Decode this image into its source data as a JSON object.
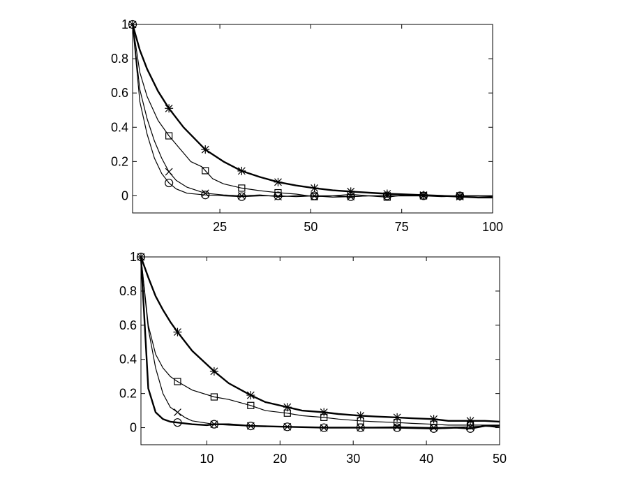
{
  "chart_data": [
    {
      "type": "line",
      "title": "",
      "xlabel": "",
      "ylabel": "",
      "xlim": [
        1,
        100
      ],
      "ylim": [
        -0.1,
        1.0
      ],
      "grid": false,
      "x_ticks": [
        25,
        50,
        75,
        100
      ],
      "y_ticks": [
        0,
        0.2,
        0.4,
        0.6,
        0.8,
        1
      ],
      "x_tick_labels": [
        "25",
        "50",
        "75",
        "100"
      ],
      "y_tick_labels": [
        "0",
        "0.2",
        "0.4",
        "0.6",
        "0.8",
        "1"
      ],
      "series": [
        {
          "marker": "star",
          "marker_x": [
            1,
            11,
            21,
            31,
            41,
            51,
            61,
            71,
            81,
            91
          ],
          "line_width": 2.4,
          "x": [
            1,
            3,
            5,
            8,
            11,
            15,
            21,
            26,
            31,
            36,
            41,
            46,
            51,
            56,
            61,
            66,
            71,
            76,
            81,
            86,
            91,
            96,
            100
          ],
          "y": [
            1.0,
            0.85,
            0.74,
            0.61,
            0.51,
            0.4,
            0.27,
            0.2,
            0.145,
            0.11,
            0.08,
            0.06,
            0.045,
            0.032,
            0.025,
            0.018,
            0.012,
            0.008,
            0.004,
            0.0,
            -0.005,
            -0.01,
            -0.01
          ]
        },
        {
          "marker": "square",
          "marker_x": [
            11,
            21,
            31,
            41,
            51,
            61,
            71,
            81,
            91
          ],
          "line_width": 1.2,
          "x": [
            1,
            3,
            5,
            8,
            11,
            13,
            15,
            17,
            20,
            23,
            26,
            31,
            36,
            41,
            46,
            51,
            56,
            61,
            66,
            71,
            76,
            81,
            86,
            91,
            96,
            100
          ],
          "y": [
            1.0,
            0.72,
            0.58,
            0.44,
            0.35,
            0.3,
            0.25,
            0.2,
            0.17,
            0.1,
            0.07,
            0.045,
            0.03,
            0.018,
            0.01,
            -0.005,
            0.0,
            0.008,
            0.0,
            -0.008,
            0.005,
            0.0,
            -0.005,
            0.0,
            0.0,
            -0.005
          ]
        },
        {
          "marker": "x",
          "marker_x": [
            11,
            21,
            31,
            41,
            51,
            61,
            71,
            81,
            91
          ],
          "line_width": 1.2,
          "x": [
            1,
            3,
            5,
            7,
            9,
            11,
            13,
            16,
            21,
            26,
            31,
            36,
            41,
            46,
            51,
            56,
            61,
            66,
            71,
            76,
            81,
            86,
            91,
            96,
            100
          ],
          "y": [
            1.0,
            0.62,
            0.45,
            0.32,
            0.22,
            0.14,
            0.09,
            0.05,
            0.015,
            0.005,
            0.0,
            0.005,
            -0.005,
            0.0,
            0.0,
            0.0,
            -0.005,
            0.0,
            0.0,
            0.0,
            0.0,
            0.0,
            0.0,
            0.0,
            0.0
          ]
        },
        {
          "marker": "circle",
          "marker_x": [
            1,
            11,
            21,
            31,
            41,
            51,
            61,
            71,
            81,
            91
          ],
          "line_width": 1.2,
          "x": [
            1,
            3,
            5,
            7,
            9,
            11,
            13,
            16,
            21,
            26,
            31,
            36,
            41,
            46,
            51,
            56,
            61,
            66,
            71,
            76,
            81,
            86,
            91,
            96,
            100
          ],
          "y": [
            1.0,
            0.55,
            0.36,
            0.22,
            0.13,
            0.075,
            0.04,
            0.015,
            0.005,
            0.0,
            -0.005,
            0.0,
            0.0,
            -0.005,
            0.0,
            -0.008,
            -0.005,
            0.0,
            0.0,
            0.0,
            0.0,
            0.0,
            0.0,
            0.0,
            0.0
          ]
        }
      ]
    },
    {
      "type": "line",
      "title": "",
      "xlabel": "",
      "ylabel": "",
      "xlim": [
        1,
        50
      ],
      "ylim": [
        -0.1,
        1.0
      ],
      "grid": false,
      "x_ticks": [
        10,
        20,
        30,
        40,
        50
      ],
      "y_ticks": [
        0,
        0.2,
        0.4,
        0.6,
        0.8,
        1
      ],
      "x_tick_labels": [
        "10",
        "20",
        "30",
        "40",
        "50"
      ],
      "y_tick_labels": [
        "0",
        "0.2",
        "0.4",
        "0.6",
        "0.8",
        "1"
      ],
      "series": [
        {
          "marker": "star",
          "marker_x": [
            1,
            6,
            11,
            16,
            21,
            26,
            31,
            36,
            41,
            46
          ],
          "line_width": 2.4,
          "x": [
            1,
            2,
            3,
            4,
            5,
            6,
            8,
            11,
            13,
            16,
            18,
            21,
            23,
            26,
            28,
            31,
            33,
            36,
            38,
            41,
            43,
            46,
            48,
            50
          ],
          "y": [
            1.0,
            0.88,
            0.77,
            0.69,
            0.62,
            0.56,
            0.45,
            0.33,
            0.26,
            0.19,
            0.15,
            0.12,
            0.1,
            0.09,
            0.08,
            0.07,
            0.065,
            0.06,
            0.055,
            0.05,
            0.04,
            0.04,
            0.04,
            0.035
          ]
        },
        {
          "marker": "square",
          "marker_x": [
            6,
            11,
            16,
            21,
            26,
            31,
            36,
            41,
            46
          ],
          "line_width": 1.2,
          "x": [
            1,
            2,
            3,
            4,
            5,
            6,
            8,
            11,
            13,
            16,
            18,
            21,
            23,
            26,
            28,
            31,
            33,
            36,
            38,
            41,
            43,
            46,
            48,
            50
          ],
          "y": [
            1.0,
            0.6,
            0.43,
            0.35,
            0.3,
            0.27,
            0.22,
            0.18,
            0.165,
            0.13,
            0.1,
            0.085,
            0.07,
            0.06,
            0.05,
            0.04,
            0.035,
            0.03,
            0.025,
            0.02,
            0.015,
            0.015,
            0.015,
            0.015
          ]
        },
        {
          "marker": "x",
          "marker_x": [
            6,
            11,
            16,
            21,
            26,
            31,
            36,
            41,
            46
          ],
          "line_width": 1.2,
          "x": [
            1,
            2,
            3,
            4,
            5,
            6,
            7,
            8,
            11,
            13,
            16,
            21,
            26,
            31,
            36,
            41,
            46,
            48,
            50
          ],
          "y": [
            1.0,
            0.58,
            0.35,
            0.2,
            0.12,
            0.09,
            0.06,
            0.04,
            0.02,
            0.015,
            0.01,
            0.005,
            0.0,
            0.0,
            0.005,
            0.0,
            0.005,
            0.01,
            0.0
          ]
        },
        {
          "marker": "circle",
          "marker_x": [
            1,
            6,
            11,
            16,
            21,
            26,
            31,
            36,
            41,
            46
          ],
          "line_width": 2.4,
          "x": [
            1,
            2,
            3,
            4,
            5,
            6,
            8,
            10,
            11,
            13,
            16,
            21,
            26,
            31,
            36,
            41,
            44,
            46,
            48,
            50
          ],
          "y": [
            1.0,
            0.23,
            0.09,
            0.05,
            0.035,
            0.03,
            0.02,
            0.015,
            0.02,
            0.02,
            0.01,
            0.005,
            0.0,
            0.0,
            0.0,
            -0.005,
            0.0,
            -0.005,
            0.01,
            0.01
          ]
        }
      ]
    }
  ]
}
